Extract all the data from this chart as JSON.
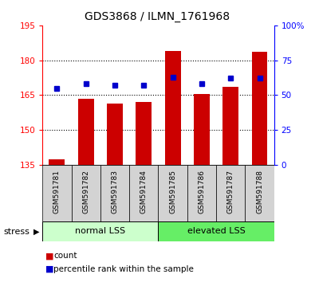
{
  "title": "GDS3868 / ILMN_1761968",
  "samples": [
    "GSM591781",
    "GSM591782",
    "GSM591783",
    "GSM591784",
    "GSM591785",
    "GSM591786",
    "GSM591787",
    "GSM591788"
  ],
  "bar_values": [
    137.5,
    163.5,
    161.5,
    162.0,
    184.0,
    165.5,
    168.5,
    183.5
  ],
  "percentile_values": [
    55,
    58,
    57,
    57,
    63,
    58,
    62,
    62
  ],
  "bar_color": "#cc0000",
  "dot_color": "#0000cc",
  "ylim_left": [
    135,
    195
  ],
  "ylim_right": [
    0,
    100
  ],
  "yticks_left": [
    135,
    150,
    165,
    180,
    195
  ],
  "yticks_right": [
    0,
    25,
    50,
    75,
    100
  ],
  "grid_values": [
    150,
    165,
    180
  ],
  "group1_label": "normal LSS",
  "group2_label": "elevated LSS",
  "group1_indices": [
    0,
    1,
    2,
    3
  ],
  "group2_indices": [
    4,
    5,
    6,
    7
  ],
  "group1_color": "#ccffcc",
  "group2_color": "#66ee66",
  "stress_label": "stress",
  "legend_count": "count",
  "legend_percentile": "percentile rank within the sample",
  "bar_bottom": 135,
  "bar_width": 0.55
}
